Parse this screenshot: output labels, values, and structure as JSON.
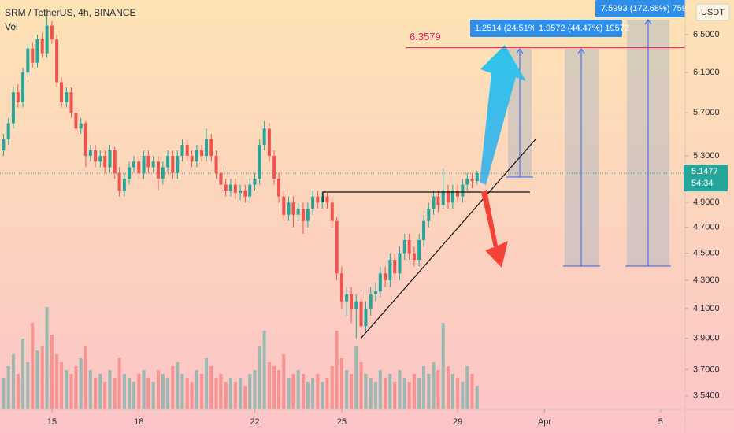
{
  "chart_data": {
    "type": "candlestick",
    "title": "SRM / TetherUS, 4h, BINANCE",
    "volume_label": "Vol",
    "currency": "USDT",
    "log_scale": true,
    "grid": false,
    "up_color": "#26a69a",
    "down_color": "#ef5350",
    "xlim": [
      13.21,
      36.85
    ],
    "xticks": [
      15,
      18,
      22,
      25,
      29,
      {
        "value": 32,
        "label": "Apr"
      },
      {
        "value": 36,
        "label": "5"
      }
    ],
    "ylim": [
      3.46,
      6.89
    ],
    "yticks": [
      {
        "value": 6.5,
        "label": "6.5000"
      },
      {
        "value": 6.1,
        "label": "6.1000"
      },
      {
        "value": 5.7,
        "label": "5.7000"
      },
      {
        "value": 5.3,
        "label": "5.3000"
      },
      {
        "value": 4.9,
        "label": "4.9000"
      },
      {
        "value": 4.7,
        "label": "4.7000"
      },
      {
        "value": 4.5,
        "label": "4.5000"
      },
      {
        "value": 4.3,
        "label": "4.3000"
      },
      {
        "value": 4.1,
        "label": "4.1000"
      },
      {
        "value": 3.9,
        "label": "3.9000"
      },
      {
        "value": 3.7,
        "label": "3.7000"
      },
      {
        "value": 3.54,
        "label": "3.5400"
      }
    ],
    "x": [
      13.33,
      13.5,
      13.67,
      13.83,
      14,
      14.17,
      14.33,
      14.5,
      14.67,
      14.83,
      15,
      15.17,
      15.33,
      15.5,
      15.67,
      15.83,
      16,
      16.17,
      16.33,
      16.5,
      16.67,
      16.83,
      17,
      17.17,
      17.33,
      17.5,
      17.67,
      17.83,
      18,
      18.17,
      18.33,
      18.5,
      18.67,
      18.83,
      19,
      19.17,
      19.33,
      19.5,
      19.67,
      19.83,
      20,
      20.17,
      20.33,
      20.5,
      20.67,
      20.83,
      21,
      21.17,
      21.33,
      21.5,
      21.67,
      21.83,
      22,
      22.17,
      22.33,
      22.5,
      22.67,
      22.83,
      23,
      23.17,
      23.33,
      23.5,
      23.67,
      23.83,
      24,
      24.17,
      24.33,
      24.5,
      24.67,
      24.83,
      25,
      25.17,
      25.33,
      25.5,
      25.67,
      25.83,
      26,
      26.17,
      26.33,
      26.5,
      26.67,
      26.83,
      27,
      27.17,
      27.33,
      27.5,
      27.67,
      27.83,
      28,
      28.17,
      28.33,
      28.5,
      28.67,
      28.83,
      29,
      29.17,
      29.33,
      29.5,
      29.67
    ],
    "open": [
      5.35,
      5.45,
      5.6,
      5.9,
      5.8,
      6.1,
      6.35,
      6.2,
      6.45,
      6.3,
      6.6,
      6.45,
      6.0,
      5.8,
      5.9,
      5.7,
      5.55,
      5.6,
      5.3,
      5.35,
      5.25,
      5.3,
      5.2,
      5.35,
      5.15,
      5.0,
      5.1,
      5.2,
      5.25,
      5.15,
      5.3,
      5.2,
      5.25,
      5.1,
      5.2,
      5.3,
      5.15,
      5.3,
      5.4,
      5.3,
      5.25,
      5.35,
      5.3,
      5.45,
      5.3,
      5.15,
      5.05,
      5.0,
      5.05,
      4.98,
      5.0,
      4.95,
      5.05,
      5.1,
      5.4,
      5.55,
      5.3,
      5.1,
      4.95,
      4.8,
      4.9,
      4.8,
      4.85,
      4.75,
      4.85,
      4.95,
      4.9,
      4.95,
      4.9,
      4.75,
      4.35,
      4.15,
      4.2,
      4.1,
      4.15,
      3.98,
      4.1,
      4.2,
      4.22,
      4.35,
      4.3,
      4.45,
      4.35,
      4.5,
      4.6,
      4.5,
      4.45,
      4.6,
      4.75,
      4.85,
      4.95,
      4.88,
      5.0,
      4.9,
      5.0,
      4.95,
      5.05,
      5.1,
      5.08
    ],
    "high": [
      5.5,
      5.65,
      5.95,
      5.98,
      6.15,
      6.4,
      6.42,
      6.5,
      6.52,
      6.72,
      6.65,
      6.5,
      6.05,
      5.95,
      5.95,
      5.75,
      5.65,
      5.62,
      5.4,
      5.4,
      5.35,
      5.35,
      5.4,
      5.38,
      5.2,
      5.15,
      5.25,
      5.3,
      5.3,
      5.35,
      5.35,
      5.3,
      5.3,
      5.25,
      5.35,
      5.35,
      5.35,
      5.45,
      5.45,
      5.35,
      5.4,
      5.4,
      5.55,
      5.5,
      5.35,
      5.2,
      5.1,
      5.1,
      5.1,
      5.05,
      5.05,
      5.1,
      5.15,
      5.45,
      5.62,
      5.6,
      5.35,
      5.15,
      5.0,
      4.95,
      4.95,
      4.9,
      4.9,
      4.9,
      5.0,
      5.0,
      5.0,
      4.98,
      4.95,
      4.78,
      4.4,
      4.25,
      4.25,
      4.2,
      4.2,
      4.15,
      4.25,
      4.28,
      4.4,
      4.4,
      4.5,
      4.5,
      4.55,
      4.65,
      4.65,
      4.55,
      4.65,
      4.8,
      4.9,
      5.0,
      5.0,
      5.18,
      5.05,
      5.05,
      5.05,
      5.1,
      5.15,
      5.15,
      5.17
    ],
    "low": [
      5.3,
      5.4,
      5.55,
      5.75,
      5.75,
      6.05,
      6.15,
      6.15,
      6.25,
      6.25,
      6.4,
      5.95,
      5.75,
      5.75,
      5.65,
      5.5,
      5.5,
      5.2,
      5.25,
      5.2,
      5.2,
      5.15,
      5.15,
      5.1,
      4.95,
      4.95,
      5.05,
      5.15,
      5.1,
      5.1,
      5.15,
      5.15,
      5.0,
      5.05,
      5.15,
      5.1,
      5.1,
      5.25,
      5.25,
      5.2,
      5.2,
      5.25,
      5.25,
      5.25,
      5.1,
      5.0,
      4.95,
      4.95,
      4.93,
      4.92,
      4.9,
      4.9,
      5.0,
      5.05,
      5.35,
      5.25,
      5.05,
      4.9,
      4.75,
      4.75,
      4.7,
      4.75,
      4.65,
      4.7,
      4.8,
      4.85,
      4.85,
      4.85,
      4.7,
      4.3,
      4.1,
      4.05,
      4.0,
      3.9,
      3.95,
      3.95,
      4.05,
      4.15,
      4.18,
      4.25,
      4.25,
      4.3,
      4.3,
      4.45,
      4.45,
      4.4,
      4.4,
      4.55,
      4.7,
      4.8,
      4.82,
      4.85,
      4.85,
      4.85,
      4.9,
      4.9,
      5.0,
      5.02,
      5.05
    ],
    "close": [
      5.45,
      5.6,
      5.9,
      5.8,
      6.1,
      6.35,
      6.2,
      6.45,
      6.3,
      6.6,
      6.45,
      6.0,
      5.8,
      5.9,
      5.7,
      5.55,
      5.6,
      5.3,
      5.35,
      5.25,
      5.3,
      5.2,
      5.35,
      5.15,
      5.0,
      5.1,
      5.2,
      5.25,
      5.15,
      5.3,
      5.2,
      5.25,
      5.1,
      5.2,
      5.3,
      5.15,
      5.3,
      5.4,
      5.3,
      5.25,
      5.35,
      5.3,
      5.45,
      5.3,
      5.15,
      5.05,
      5.0,
      5.05,
      4.98,
      5.0,
      4.95,
      5.05,
      5.1,
      5.4,
      5.55,
      5.3,
      5.1,
      4.95,
      4.8,
      4.9,
      4.8,
      4.85,
      4.75,
      4.85,
      4.95,
      4.9,
      4.95,
      4.9,
      4.75,
      4.35,
      4.15,
      4.2,
      4.1,
      4.15,
      3.98,
      4.1,
      4.2,
      4.22,
      4.35,
      4.3,
      4.45,
      4.35,
      4.5,
      4.6,
      4.5,
      4.45,
      4.6,
      4.75,
      4.85,
      4.95,
      4.88,
      5.0,
      4.9,
      5.0,
      4.95,
      5.05,
      5.1,
      5.08,
      5.1477
    ],
    "volume": [
      40,
      55,
      70,
      45,
      90,
      60,
      110,
      75,
      80,
      130,
      95,
      70,
      60,
      50,
      45,
      55,
      65,
      80,
      50,
      40,
      45,
      35,
      50,
      40,
      65,
      45,
      40,
      35,
      45,
      50,
      40,
      35,
      50,
      45,
      40,
      55,
      60,
      45,
      40,
      35,
      50,
      45,
      65,
      55,
      40,
      45,
      35,
      40,
      35,
      40,
      30,
      45,
      50,
      80,
      100,
      60,
      55,
      50,
      70,
      40,
      45,
      50,
      45,
      35,
      40,
      45,
      35,
      40,
      55,
      100,
      65,
      50,
      45,
      80,
      60,
      45,
      40,
      35,
      50,
      40,
      45,
      35,
      50,
      40,
      35,
      45,
      40,
      55,
      45,
      60,
      50,
      110,
      55,
      45,
      40,
      35,
      55,
      45,
      30
    ],
    "levels": [
      {
        "value": 6.3579,
        "color": "#e91e63"
      }
    ],
    "countdown": "54:34",
    "measures": [
      "1.2514 (24.51%",
      "1.9572 (44.47%) 19572",
      "7.5993 (172.68%) 759"
    ]
  }
}
